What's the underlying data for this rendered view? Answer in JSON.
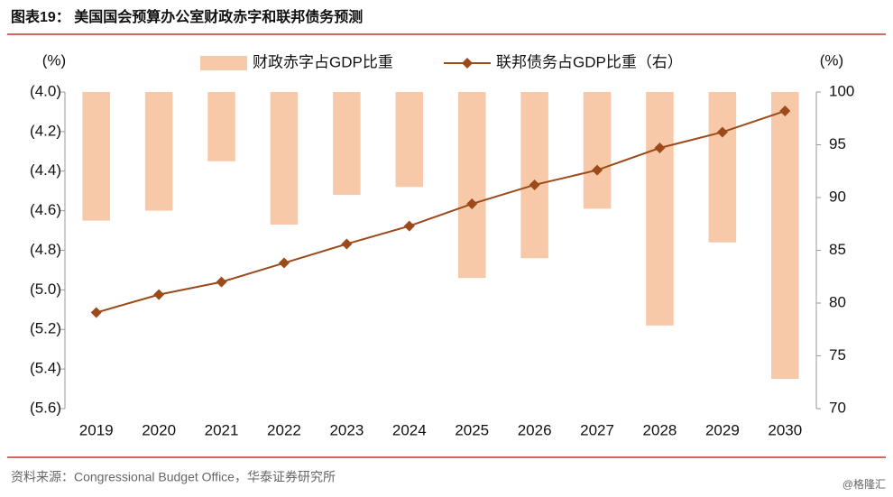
{
  "chart_data": {
    "type": "bar",
    "title": "图表19： 美国国会预算办公室财政赤字和联邦债务预测",
    "y_label": "(%)",
    "y2_label": "(%)",
    "categories": [
      "2019",
      "2020",
      "2021",
      "2022",
      "2023",
      "2024",
      "2025",
      "2026",
      "2027",
      "2028",
      "2029",
      "2030"
    ],
    "series": [
      {
        "name": "财政赤字占GDP比重",
        "type": "bar",
        "color": "#f8c9a9",
        "values": [
          -4.65,
          -4.6,
          -4.35,
          -4.67,
          -4.52,
          -4.48,
          -4.94,
          -4.84,
          -4.59,
          -5.18,
          -4.76,
          -5.45
        ]
      },
      {
        "name": "联邦债务占GDP比重（右）",
        "type": "line",
        "axis": "y2",
        "color": "#9c4a1a",
        "values": [
          79.1,
          80.8,
          82.0,
          83.8,
          85.6,
          87.3,
          89.4,
          91.2,
          92.6,
          94.7,
          96.2,
          98.2
        ]
      }
    ],
    "ylim": [
      -5.6,
      -4.0
    ],
    "yticks": [
      {
        "value": -4.0,
        "label": "(4.0)"
      },
      {
        "value": -4.2,
        "label": "(4.2)"
      },
      {
        "value": -4.4,
        "label": "(4.4)"
      },
      {
        "value": -4.6,
        "label": "(4.6)"
      },
      {
        "value": -4.8,
        "label": "(4.8)"
      },
      {
        "value": -5.0,
        "label": "(5.0)"
      },
      {
        "value": -5.2,
        "label": "(5.2)"
      },
      {
        "value": -5.4,
        "label": "(5.4)"
      },
      {
        "value": -5.6,
        "label": "(5.6)"
      }
    ],
    "y2lim": [
      70,
      100
    ],
    "y2ticks": [
      70,
      75,
      80,
      85,
      90,
      95,
      100
    ],
    "source": "资料来源：Congressional Budget Office，华泰证券研究所",
    "watermark": "@格隆汇"
  }
}
